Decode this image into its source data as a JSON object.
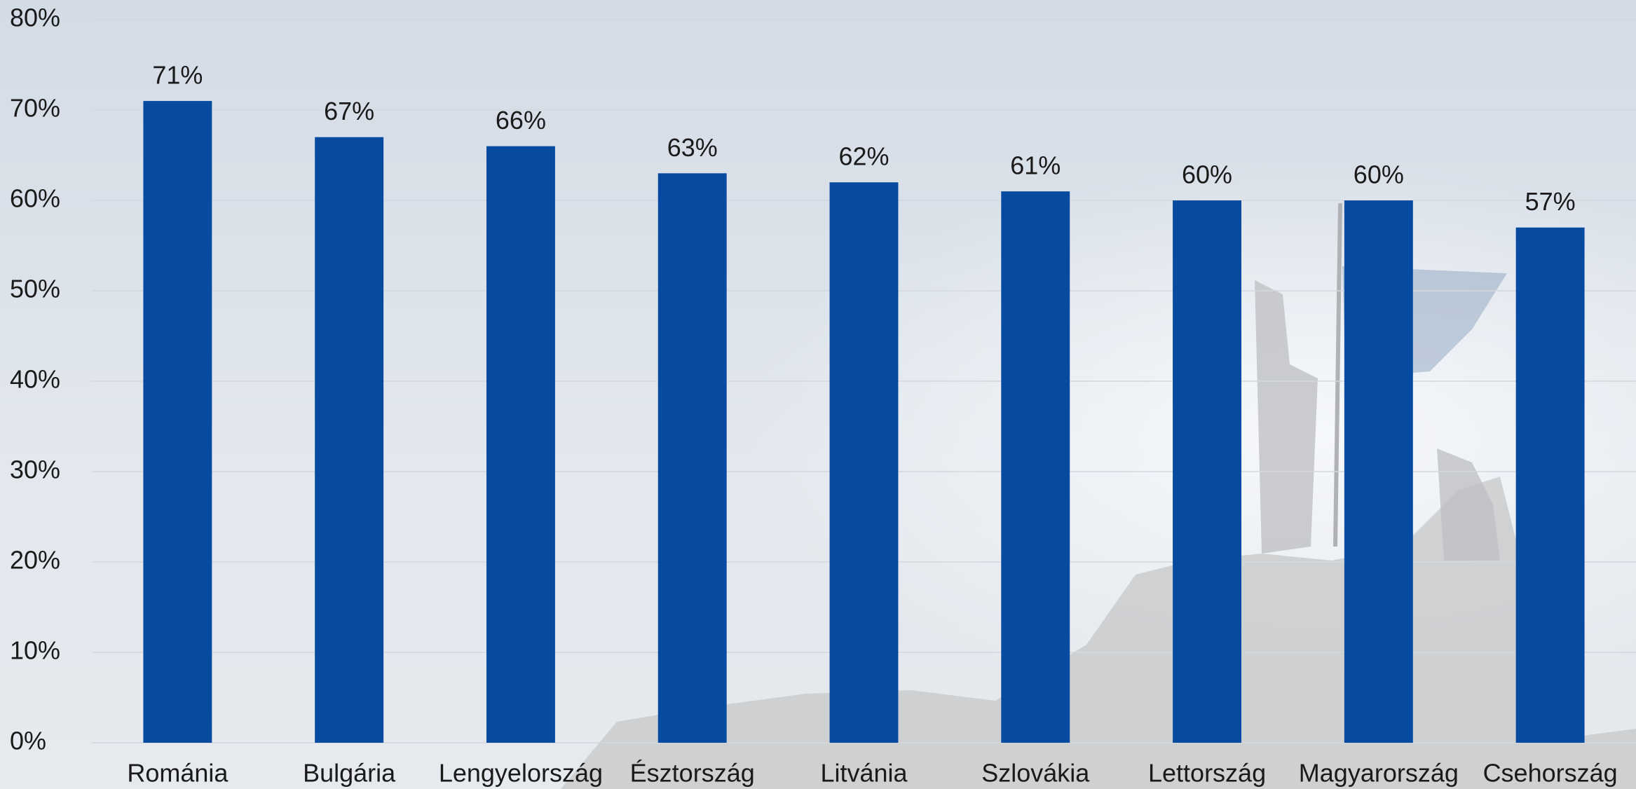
{
  "chart_data": {
    "type": "bar",
    "categories": [
      "Románia",
      "Bulgária",
      "Lengyelország",
      "Észtország",
      "Litvánia",
      "Szlovákia",
      "Lettország",
      "Magyarország",
      "Csehország"
    ],
    "values": [
      71,
      67,
      66,
      63,
      62,
      61,
      60,
      60,
      57
    ],
    "value_labels": [
      "71%",
      "67%",
      "66%",
      "63%",
      "62%",
      "61%",
      "60%",
      "60%",
      "57%"
    ],
    "color": "#064ba0",
    "ylim": [
      0,
      80
    ],
    "yticks": [
      {
        "value": 0,
        "label": "0%"
      },
      {
        "value": 10,
        "label": "10%"
      },
      {
        "value": 20,
        "label": "20%"
      },
      {
        "value": 30,
        "label": "30%"
      },
      {
        "value": 40,
        "label": "40%"
      },
      {
        "value": 50,
        "label": "50%"
      },
      {
        "value": 60,
        "label": "60%"
      },
      {
        "value": 70,
        "label": "70%"
      },
      {
        "value": 80,
        "label": "80%"
      }
    ],
    "grid": true
  }
}
